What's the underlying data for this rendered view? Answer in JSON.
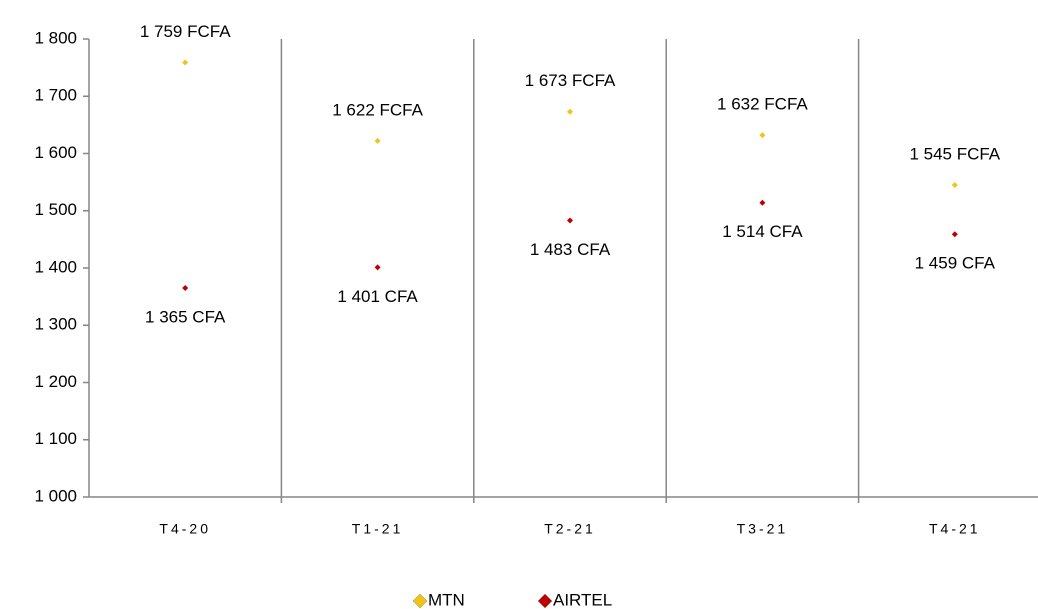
{
  "chart_data": {
    "type": "scatter",
    "categories": [
      "T4-20",
      "T1-21",
      "T2-21",
      "T3-21",
      "T4-21"
    ],
    "series": [
      {
        "name": "MTN",
        "color": "#f2c314",
        "values": [
          1759,
          1622,
          1673,
          1632,
          1545
        ],
        "value_labels": [
          "1 759 FCFA",
          "1 622 FCFA",
          "1 673 FCFA",
          "1 632 FCFA",
          "1 545 FCFA"
        ]
      },
      {
        "name": "AIRTEL",
        "color": "#c00000",
        "values": [
          1365,
          1401,
          1483,
          1514,
          1459
        ],
        "value_labels": [
          "1 365 CFA",
          "1 401 CFA",
          "1 483 CFA",
          "1 514 CFA",
          "1 459 CFA"
        ]
      }
    ],
    "ylim": [
      1000,
      1800
    ],
    "yticks": [
      {
        "value": 1000,
        "label": "1 000"
      },
      {
        "value": 1100,
        "label": "1 100"
      },
      {
        "value": 1200,
        "label": "1 200"
      },
      {
        "value": 1300,
        "label": "1 300"
      },
      {
        "value": 1400,
        "label": "1 400"
      },
      {
        "value": 1500,
        "label": "1 500"
      },
      {
        "value": 1600,
        "label": "1 600"
      },
      {
        "value": 1700,
        "label": "1 700"
      },
      {
        "value": 1800,
        "label": "1 800"
      }
    ],
    "legend": "bottom"
  }
}
